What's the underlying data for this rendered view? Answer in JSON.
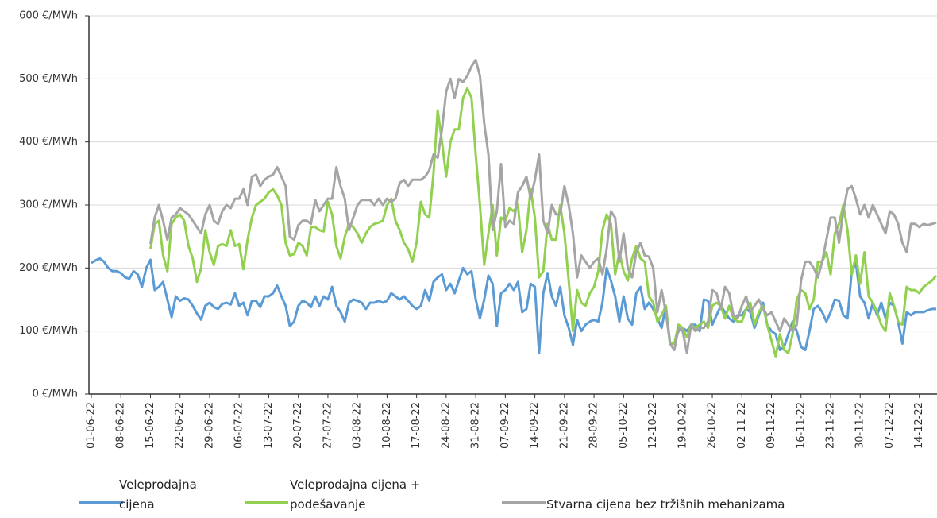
{
  "chart_data": {
    "type": "line",
    "categories": [
      "01-06-22",
      null,
      null,
      null,
      null,
      null,
      null,
      "08-06-22",
      null,
      null,
      null,
      null,
      null,
      null,
      "15-06-22",
      null,
      null,
      null,
      null,
      null,
      null,
      "22-06-22",
      null,
      null,
      null,
      null,
      null,
      null,
      "29-06-22",
      null,
      null,
      null,
      null,
      null,
      null,
      "06-07-22",
      null,
      null,
      null,
      null,
      null,
      null,
      "13-07-22",
      null,
      null,
      null,
      null,
      null,
      null,
      "20-07-22",
      null,
      null,
      null,
      null,
      null,
      null,
      "27-07-22",
      null,
      null,
      null,
      null,
      null,
      null,
      "03-08-22",
      null,
      null,
      null,
      null,
      null,
      null,
      "10-08-22",
      null,
      null,
      null,
      null,
      null,
      null,
      "17-08-22",
      null,
      null,
      null,
      null,
      null,
      null,
      "24-08-22",
      null,
      null,
      null,
      null,
      null,
      null,
      "31-08-22",
      null,
      null,
      null,
      null,
      null,
      null,
      "07-09-22",
      null,
      null,
      null,
      null,
      null,
      null,
      "14-09-22",
      null,
      null,
      null,
      null,
      null,
      null,
      "21-09-22",
      null,
      null,
      null,
      null,
      null,
      null,
      "28-09-22",
      null,
      null,
      null,
      null,
      null,
      null,
      "05-10-22",
      null,
      null,
      null,
      null,
      null,
      null,
      "12-10-22",
      null,
      null,
      null,
      null,
      null,
      null,
      "19-10-22",
      null,
      null,
      null,
      null,
      null,
      null,
      "26-10-22",
      null,
      null,
      null,
      null,
      null,
      null,
      "02-11-22",
      null,
      null,
      null,
      null,
      null,
      null,
      "09-11-22",
      null,
      null,
      null,
      null,
      null,
      null,
      "16-11-22",
      null,
      null,
      null,
      null,
      null,
      null,
      "23-11-22",
      null,
      null,
      null,
      null,
      null,
      null,
      "30-11-22",
      null,
      null,
      null,
      null,
      null,
      null,
      "07-12-22",
      null,
      null,
      null,
      null,
      null,
      null,
      "14-12-22",
      null,
      null,
      null,
      null
    ],
    "series": [
      {
        "name": "Veleprodajna cijena",
        "color": "#5b9bd5",
        "values": [
          208,
          212,
          215,
          210,
          200,
          195,
          195,
          192,
          185,
          183,
          195,
          190,
          170,
          200,
          213,
          165,
          170,
          178,
          150,
          122,
          155,
          148,
          152,
          150,
          140,
          128,
          118,
          140,
          145,
          138,
          135,
          143,
          145,
          142,
          160,
          140,
          145,
          125,
          148,
          148,
          138,
          155,
          155,
          160,
          172,
          155,
          140,
          108,
          115,
          140,
          148,
          145,
          138,
          155,
          140,
          155,
          150,
          170,
          140,
          130,
          115,
          145,
          150,
          148,
          145,
          135,
          145,
          145,
          148,
          145,
          148,
          160,
          155,
          150,
          155,
          148,
          140,
          135,
          140,
          165,
          148,
          178,
          185,
          190,
          165,
          175,
          160,
          180,
          200,
          190,
          195,
          150,
          120,
          150,
          188,
          175,
          108,
          160,
          165,
          175,
          165,
          178,
          130,
          135,
          175,
          170,
          65,
          160,
          192,
          155,
          140,
          170,
          125,
          105,
          78,
          118,
          100,
          110,
          115,
          118,
          115,
          145,
          200,
          180,
          155,
          115,
          155,
          120,
          110,
          160,
          170,
          135,
          145,
          135,
          120,
          105,
          140,
          80,
          80,
          100,
          105,
          100,
          110,
          110,
          100,
          150,
          148,
          110,
          125,
          140,
          130,
          120,
          115,
          125,
          125,
          135,
          130,
          105,
          125,
          145,
          110,
          100,
          95,
          70,
          75,
          95,
          115,
          100,
          75,
          70,
          100,
          135,
          140,
          130,
          115,
          130,
          150,
          148,
          125,
          120,
          195,
          208,
          155,
          145,
          120,
          145,
          125,
          145,
          120,
          145,
          140,
          115,
          80,
          130,
          125,
          130,
          130,
          130,
          133,
          135,
          135
        ]
      },
      {
        "name": "Veleprodajna cijena + podešavanje",
        "color": "#92d050",
        "values": [
          null,
          null,
          null,
          null,
          null,
          null,
          null,
          null,
          null,
          null,
          null,
          null,
          null,
          null,
          230,
          270,
          275,
          220,
          195,
          270,
          280,
          285,
          275,
          235,
          215,
          178,
          200,
          260,
          225,
          205,
          235,
          238,
          235,
          260,
          235,
          238,
          198,
          245,
          280,
          300,
          305,
          310,
          320,
          325,
          315,
          300,
          240,
          220,
          222,
          240,
          235,
          220,
          265,
          265,
          260,
          258,
          305,
          285,
          235,
          215,
          250,
          270,
          265,
          255,
          240,
          255,
          265,
          270,
          272,
          275,
          300,
          310,
          275,
          260,
          240,
          230,
          210,
          240,
          305,
          285,
          280,
          350,
          450,
          400,
          345,
          400,
          420,
          420,
          470,
          485,
          470,
          380,
          300,
          205,
          255,
          300,
          220,
          280,
          275,
          295,
          290,
          300,
          225,
          260,
          325,
          280,
          185,
          195,
          270,
          245,
          245,
          300,
          255,
          180,
          100,
          165,
          145,
          140,
          160,
          170,
          195,
          260,
          285,
          270,
          190,
          225,
          195,
          180,
          215,
          235,
          215,
          210,
          155,
          145,
          115,
          125,
          140,
          80,
          80,
          110,
          105,
          90,
          110,
          105,
          110,
          115,
          105,
          140,
          145,
          140,
          120,
          140,
          120,
          115,
          115,
          135,
          145,
          110,
          130,
          140,
          110,
          85,
          60,
          95,
          70,
          65,
          95,
          150,
          165,
          160,
          135,
          150,
          210,
          210,
          225,
          190,
          255,
          270,
          300,
          260,
          190,
          220,
          175,
          225,
          155,
          145,
          130,
          110,
          100,
          160,
          140,
          115,
          110,
          170,
          165,
          165,
          160,
          170,
          175,
          180,
          188
        ]
      },
      {
        "name": "Stvarna cijena bez tržišnih mehanizama",
        "color": "#a5a5a5",
        "values": [
          null,
          null,
          null,
          null,
          null,
          null,
          null,
          null,
          null,
          null,
          null,
          null,
          null,
          null,
          238,
          280,
          300,
          275,
          245,
          280,
          285,
          295,
          290,
          285,
          275,
          265,
          255,
          285,
          300,
          275,
          270,
          290,
          300,
          295,
          310,
          310,
          325,
          300,
          345,
          348,
          330,
          340,
          345,
          348,
          360,
          345,
          330,
          250,
          245,
          268,
          275,
          275,
          270,
          308,
          290,
          300,
          310,
          310,
          360,
          330,
          310,
          260,
          280,
          300,
          308,
          308,
          308,
          300,
          310,
          300,
          310,
          305,
          310,
          335,
          340,
          330,
          340,
          340,
          340,
          345,
          355,
          380,
          375,
          420,
          480,
          500,
          470,
          500,
          495,
          505,
          520,
          530,
          505,
          430,
          380,
          260,
          290,
          365,
          265,
          275,
          270,
          320,
          330,
          345,
          310,
          340,
          380,
          275,
          255,
          300,
          285,
          285,
          330,
          300,
          255,
          185,
          220,
          210,
          200,
          210,
          215,
          190,
          230,
          290,
          280,
          210,
          255,
          200,
          185,
          225,
          240,
          220,
          218,
          200,
          130,
          165,
          130,
          80,
          70,
          105,
          100,
          65,
          110,
          100,
          105,
          105,
          115,
          165,
          160,
          135,
          170,
          160,
          125,
          120,
          140,
          155,
          130,
          140,
          150,
          135,
          125,
          130,
          115,
          100,
          120,
          110,
          100,
          110,
          180,
          210,
          210,
          200,
          185,
          210,
          245,
          280,
          280,
          240,
          290,
          325,
          330,
          310,
          285,
          300,
          280,
          300,
          285,
          270,
          255,
          290,
          285,
          270,
          240,
          225,
          270,
          270,
          265,
          270,
          268,
          270,
          272
        ]
      }
    ],
    "ylim": [
      0,
      600
    ],
    "yticks": [
      {
        "value": 0,
        "label": "0 €/MWh"
      },
      {
        "value": 100,
        "label": "100 €/MWh"
      },
      {
        "value": 200,
        "label": "200 €/MWh"
      },
      {
        "value": 300,
        "label": "300 €/MWh"
      },
      {
        "value": 400,
        "label": "400 €/MWh"
      },
      {
        "value": 500,
        "label": "500 €/MWh"
      },
      {
        "value": 600,
        "label": "600 €/MWh"
      }
    ],
    "grid": true,
    "legend": "bottom"
  }
}
